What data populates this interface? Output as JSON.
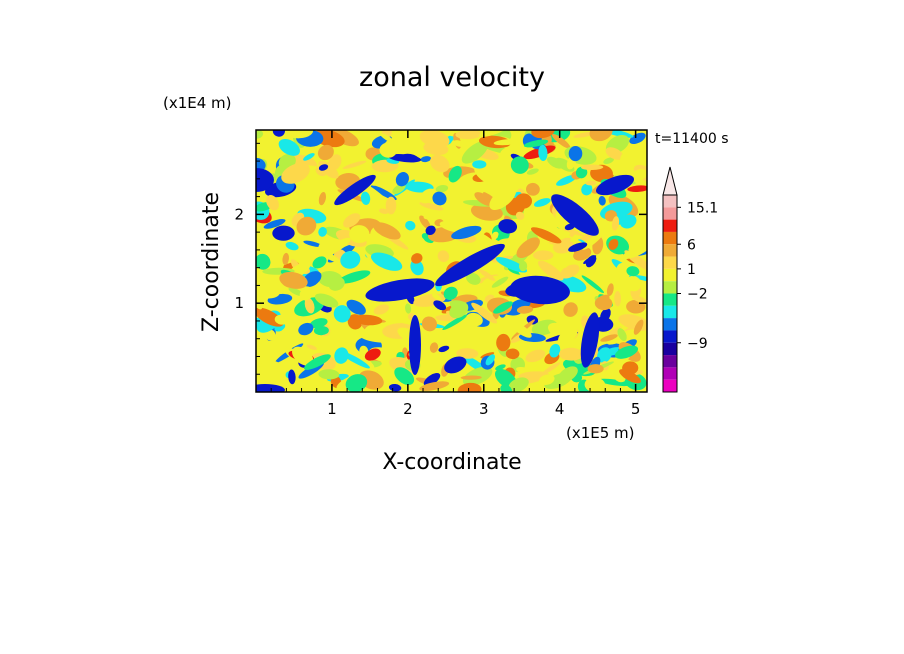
{
  "chart_data": {
    "type": "heatmap",
    "title": "zonal velocity",
    "xlabel": "X-coordinate",
    "ylabel": "Z-coordinate",
    "x_unit": "(x1E5 m)",
    "y_unit": "(x1E4 m)",
    "time_label": "t=11400 s",
    "xlim": [
      0,
      5.15
    ],
    "ylim": [
      0,
      2.95
    ],
    "x_ticks": [
      "1",
      "2",
      "3",
      "4",
      "5"
    ],
    "y_ticks": [
      "1",
      "2"
    ],
    "colorbar": {
      "labels": [
        "15.1",
        "6",
        "1",
        "−2",
        "−9"
      ],
      "colors": [
        "#f4c1c1",
        "#f49a9a",
        "#ee1c10",
        "#ec7a10",
        "#f0aa36",
        "#fdd84a",
        "#f2f230",
        "#b6ef42",
        "#16e886",
        "#19e8e8",
        "#0a74e8",
        "#0718cc",
        "#1900a0",
        "#6a009e",
        "#b000b6",
        "#ec00c0"
      ],
      "extend_top_color": "#f8e7e7"
    }
  }
}
